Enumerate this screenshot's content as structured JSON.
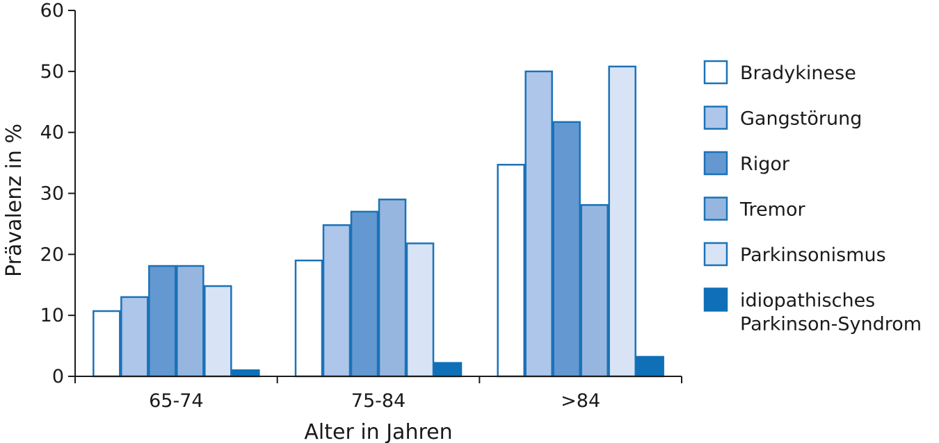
{
  "chart_data": {
    "type": "bar",
    "title": "",
    "xlabel": "Alter in Jahren",
    "ylabel": "Prävalenz in %",
    "ylim": [
      0,
      60
    ],
    "yticks": [
      0,
      10,
      20,
      30,
      40,
      50,
      60
    ],
    "categories": [
      "65-74",
      "75-84",
      ">84"
    ],
    "grid": false,
    "legend_position": "right",
    "series": [
      {
        "name": "Bradykinese",
        "values": [
          10.7,
          19,
          34.7
        ],
        "color": "#ffffff",
        "stroke": "#1a72b8"
      },
      {
        "name": "Gangstörung",
        "values": [
          13,
          24.8,
          50
        ],
        "color": "#aec6ea",
        "stroke": "#1a72b8"
      },
      {
        "name": "Rigor",
        "values": [
          18.1,
          27,
          41.7
        ],
        "color": "#6498d0",
        "stroke": "#1a72b8"
      },
      {
        "name": "Tremor",
        "values": [
          18.1,
          29,
          28.1
        ],
        "color": "#96b6e0",
        "stroke": "#1a72b8"
      },
      {
        "name": "Parkinsonismus",
        "values": [
          14.8,
          21.8,
          50.8
        ],
        "color": "#d8e4f5",
        "stroke": "#1a72b8"
      },
      {
        "name": "idiopathisches\nParkinson-Syndrom",
        "values": [
          1.0,
          2.2,
          3.2
        ],
        "color": "#0f70b7",
        "stroke": "#0f70b7"
      }
    ]
  }
}
